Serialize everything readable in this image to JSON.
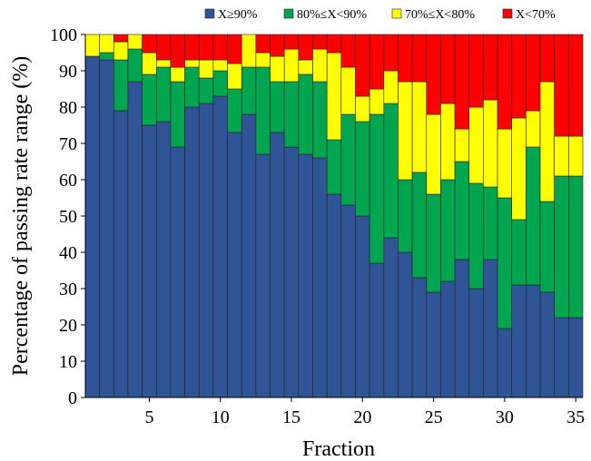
{
  "chart_data": {
    "type": "bar",
    "stacked": true,
    "xlabel": "Fraction",
    "ylabel": "Percentage of passing rate range (%)",
    "ylim": [
      0,
      100
    ],
    "xlim": [
      0.5,
      35.5
    ],
    "yticks": [
      0,
      10,
      20,
      30,
      40,
      50,
      60,
      70,
      80,
      90,
      100
    ],
    "xticks": [
      5,
      10,
      15,
      20,
      25,
      30,
      35
    ],
    "grid": false,
    "legend_position": "top",
    "categories": [
      1,
      2,
      3,
      4,
      5,
      6,
      7,
      8,
      9,
      10,
      11,
      12,
      13,
      14,
      15,
      16,
      17,
      18,
      19,
      20,
      21,
      22,
      23,
      24,
      25,
      26,
      27,
      28,
      29,
      30,
      31,
      32,
      33,
      34,
      35
    ],
    "series": [
      {
        "name": "X≥90%",
        "color": "#2f5597",
        "values": [
          94,
          93,
          79,
          87,
          75,
          76,
          69,
          80,
          81,
          83,
          73,
          78,
          67,
          73,
          69,
          67,
          66,
          56,
          53,
          50,
          37,
          44,
          40,
          33,
          29,
          32,
          38,
          30,
          38,
          19,
          31,
          31,
          29,
          22,
          22
        ]
      },
      {
        "name": "80%≤X<90%",
        "color": "#00a550",
        "values": [
          0,
          2,
          14,
          9,
          14,
          15,
          18,
          11,
          7,
          7,
          12,
          13,
          24,
          14,
          18,
          22,
          21,
          15,
          25,
          26,
          41,
          37,
          20,
          29,
          27,
          28,
          27,
          29,
          20,
          36,
          18,
          38,
          25,
          39,
          39
        ]
      },
      {
        "name": "70%≤X<80%",
        "color": "#ffff00",
        "values": [
          6,
          5,
          5,
          4,
          6,
          2,
          4,
          2,
          5,
          3,
          7,
          9,
          4,
          7,
          9,
          4,
          9,
          24,
          13,
          7,
          7,
          9,
          27,
          25,
          22,
          21,
          9,
          21,
          24,
          19,
          28,
          10,
          33,
          11,
          11
        ]
      },
      {
        "name": "X<70%",
        "color": "#ff0000",
        "values": [
          0,
          0,
          2,
          0,
          5,
          7,
          9,
          7,
          7,
          7,
          8,
          0,
          5,
          6,
          4,
          7,
          4,
          5,
          9,
          17,
          15,
          10,
          13,
          13,
          22,
          19,
          26,
          20,
          18,
          26,
          23,
          21,
          13,
          28,
          28
        ]
      }
    ]
  }
}
